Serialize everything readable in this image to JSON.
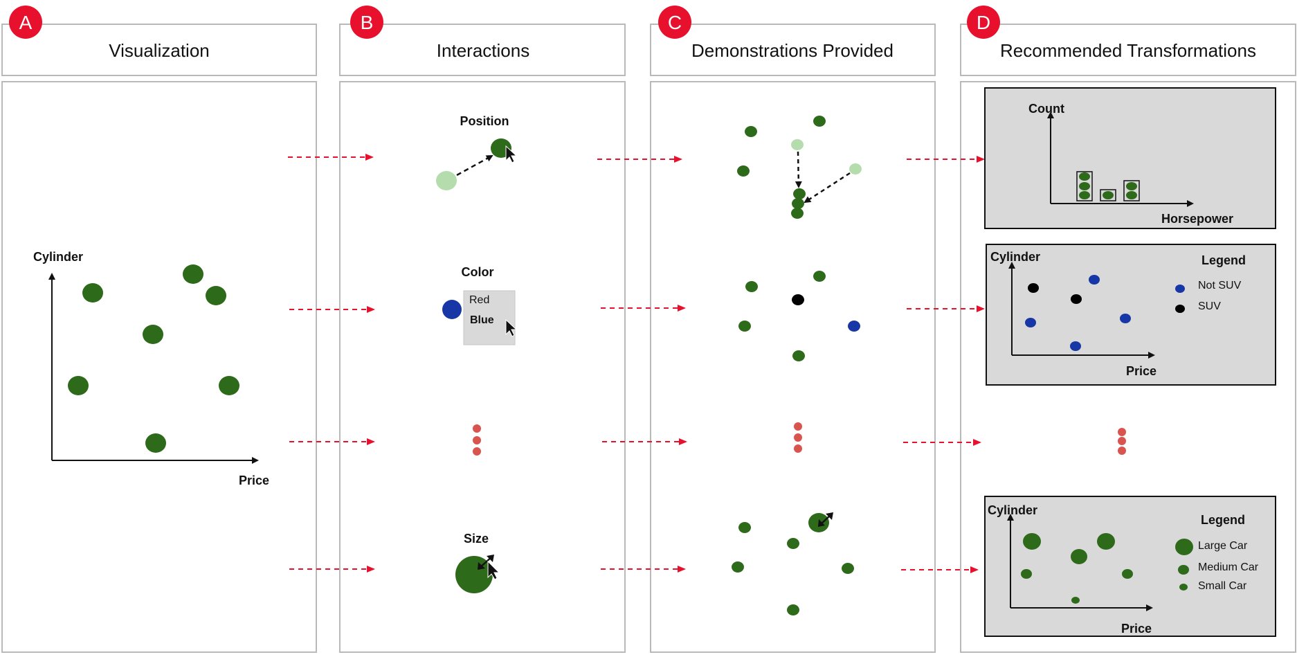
{
  "colors": {
    "badge": "#e8112d",
    "dot_green": "#2d6a1a",
    "dot_light_green": "#b5dcac",
    "dot_blue": "#1737a6",
    "dot_black": "#000000",
    "dot_red": "#d9534f",
    "arrow_red": "#e8112d",
    "panel_border": "#b9b9b9",
    "box_fill": "#d9d9d9"
  },
  "columns": [
    {
      "badge": "A",
      "title": "Visualization"
    },
    {
      "badge": "B",
      "title": "Interactions"
    },
    {
      "badge": "C",
      "title": "Demonstrations Provided"
    },
    {
      "badge": "D",
      "title": "Recommended Transformations"
    }
  ],
  "visualization": {
    "y_label": "Cylinder",
    "x_label": "Price"
  },
  "interactions": {
    "position_label": "Position",
    "color_label": "Color",
    "color_options": [
      "Red",
      "Blue"
    ],
    "size_label": "Size"
  },
  "recommendations": {
    "histogram": {
      "y_label": "Count",
      "x_label": "Horsepower"
    },
    "color_plot": {
      "y_label": "Cylinder",
      "x_label": "Price",
      "legend_title": "Legend",
      "legend_items": [
        "Not SUV",
        "SUV"
      ]
    },
    "size_plot": {
      "y_label": "Cylinder",
      "x_label": "Price",
      "legend_title": "Legend",
      "legend_items": [
        "Large Car",
        "Medium Car",
        "Small Car"
      ]
    }
  }
}
